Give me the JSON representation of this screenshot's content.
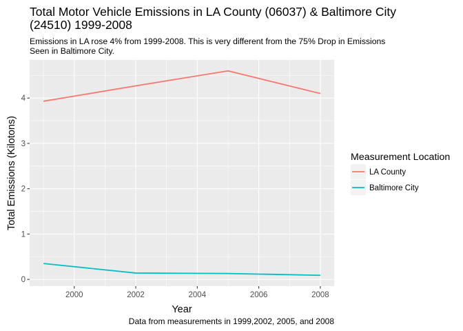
{
  "chart_data": {
    "type": "line",
    "title": "Total Motor Vehicle Emissions in LA County (06037) & Baltimore City (24510) 1999-2008",
    "title_lines": [
      "Total Motor Vehicle Emissions in LA County (06037) & Baltimore City",
      "(24510) 1999-2008"
    ],
    "subtitle": "Emissions in LA rose 4% from 1999-2008. This is very different from the 75% Drop in Emissions Seen in Baltimore City.",
    "subtitle_lines": [
      "Emissions in LA rose 4% from 1999-2008. This is very different from the 75% Drop in Emissions",
      "Seen in Baltimore City."
    ],
    "xlabel": "Year",
    "ylabel": "Total Emissions  (Kilotons)",
    "caption": "Data from measurements in 1999,2002, 2005, and 2008",
    "xlim": [
      1998.55,
      2008.45
    ],
    "ylim": [
      -0.15,
      4.84
    ],
    "x_ticks": [
      2000,
      2002,
      2004,
      2006,
      2008
    ],
    "y_ticks": [
      0,
      1,
      2,
      3,
      4
    ],
    "grid": true,
    "panel_background": "#ebebeb",
    "legend": {
      "title": "Measurement Location",
      "position": "right"
    },
    "x": [
      1999,
      2002,
      2005,
      2008
    ],
    "series": [
      {
        "name": "LA County",
        "color": "#f8766d",
        "values": [
          3.93,
          4.27,
          4.6,
          4.1
        ]
      },
      {
        "name": "Baltimore City",
        "color": "#00bfc4",
        "values": [
          0.35,
          0.14,
          0.13,
          0.09
        ]
      }
    ]
  }
}
